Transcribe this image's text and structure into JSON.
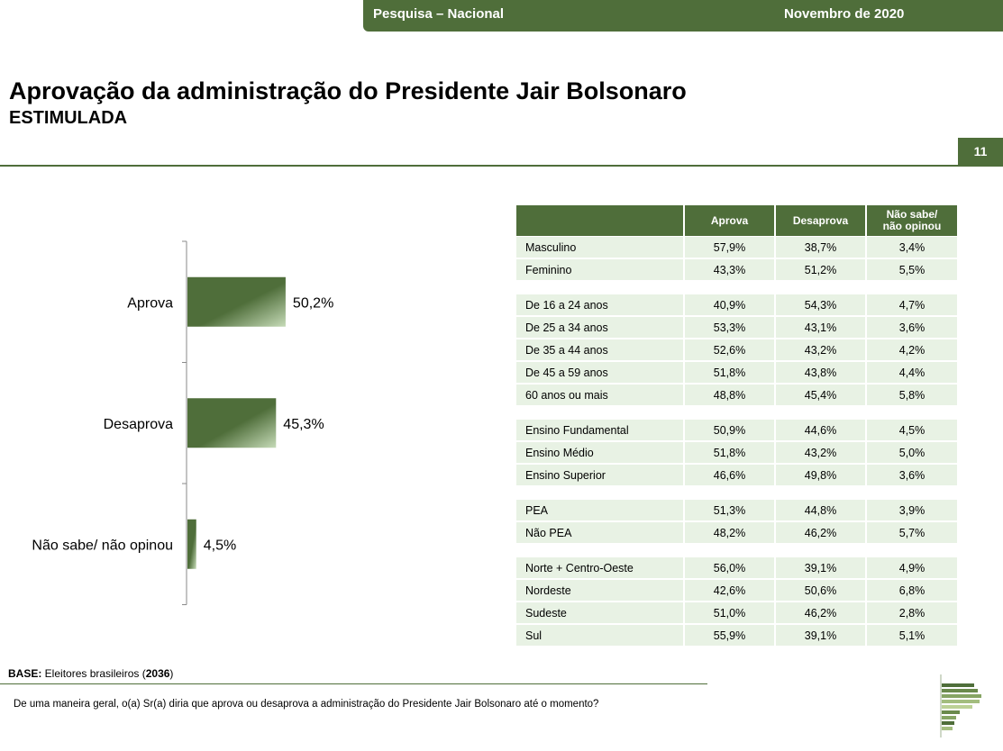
{
  "header": {
    "left": "Pesquisa – Nacional",
    "right": "Novembro de 2020",
    "page_number": "11"
  },
  "title": "Aprovação da administração do Presidente Jair Bolsonaro",
  "subtitle": "ESTIMULADA",
  "chart_data": {
    "type": "bar",
    "orientation": "horizontal",
    "categories": [
      "Aprova",
      "Desaprova",
      "Não sabe/ não opinou"
    ],
    "values": [
      50.2,
      45.3,
      4.5
    ],
    "value_labels": [
      "50,2%",
      "45,3%",
      "4,5%"
    ],
    "unit": "%",
    "xlim": [
      0,
      100
    ],
    "grid": false,
    "legend": "none"
  },
  "table": {
    "columns": [
      "Aprova",
      "Desaprova",
      "Não sabe/ não opinou"
    ],
    "groups": [
      {
        "rows": [
          {
            "label": "Masculino",
            "values": [
              "57,9%",
              "38,7%",
              "3,4%"
            ]
          },
          {
            "label": "Feminino",
            "values": [
              "43,3%",
              "51,2%",
              "5,5%"
            ]
          }
        ]
      },
      {
        "rows": [
          {
            "label": "De 16 a 24 anos",
            "values": [
              "40,9%",
              "54,3%",
              "4,7%"
            ]
          },
          {
            "label": "De 25 a 34 anos",
            "values": [
              "53,3%",
              "43,1%",
              "3,6%"
            ]
          },
          {
            "label": "De 35 a 44 anos",
            "values": [
              "52,6%",
              "43,2%",
              "4,2%"
            ]
          },
          {
            "label": "De 45 a 59 anos",
            "values": [
              "51,8%",
              "43,8%",
              "4,4%"
            ]
          },
          {
            "label": "60 anos ou mais",
            "values": [
              "48,8%",
              "45,4%",
              "5,8%"
            ]
          }
        ]
      },
      {
        "rows": [
          {
            "label": "Ensino Fundamental",
            "values": [
              "50,9%",
              "44,6%",
              "4,5%"
            ]
          },
          {
            "label": "Ensino Médio",
            "values": [
              "51,8%",
              "43,2%",
              "5,0%"
            ]
          },
          {
            "label": "Ensino Superior",
            "values": [
              "46,6%",
              "49,8%",
              "3,6%"
            ]
          }
        ]
      },
      {
        "rows": [
          {
            "label": " PEA",
            "values": [
              "51,3%",
              "44,8%",
              "3,9%"
            ]
          },
          {
            "label": " Não PEA",
            "values": [
              "48,2%",
              "46,2%",
              "5,7%"
            ]
          }
        ]
      },
      {
        "rows": [
          {
            "label": "Norte + Centro-Oeste",
            "values": [
              "56,0%",
              "39,1%",
              "4,9%"
            ]
          },
          {
            "label": "Nordeste",
            "values": [
              "42,6%",
              "50,6%",
              "6,8%"
            ]
          },
          {
            "label": "Sudeste",
            "values": [
              "51,0%",
              "46,2%",
              "2,8%"
            ]
          },
          {
            "label": "Sul",
            "values": [
              "55,9%",
              "39,1%",
              "5,1%"
            ]
          }
        ]
      }
    ]
  },
  "footer": {
    "base_label": "BASE:",
    "base_text": " Eleitores brasileiros  (",
    "base_n": "2036",
    "base_close": ")",
    "question": "De uma maneira geral, o(a) Sr(a) diria que aprova ou desaprova a administração do Presidente Jair Bolsonaro até o momento?"
  },
  "colors": {
    "brand": "#4f6e3a",
    "bar_light": "#c6dbb8",
    "row_bg": "#e8f2e4"
  }
}
